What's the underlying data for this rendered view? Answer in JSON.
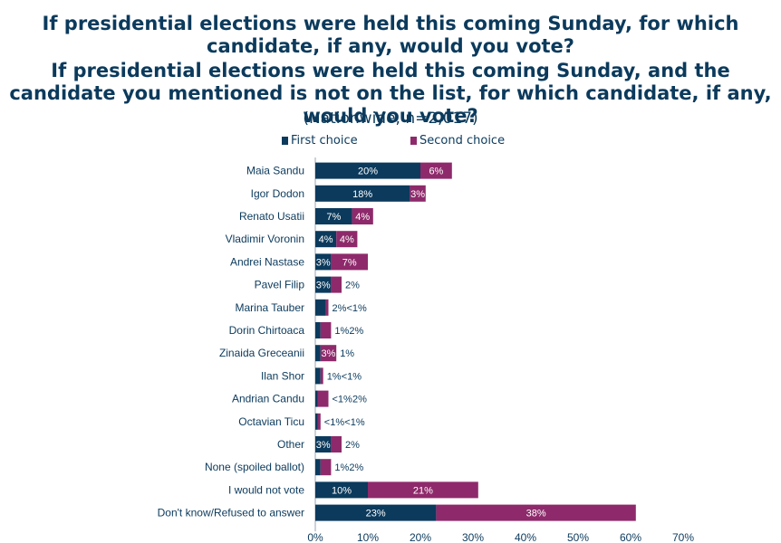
{
  "title_line1": "If presidential elections were held this coming Sunday, for which candidate, if any, would you vote?",
  "title_line2": "If presidential elections were held this coming Sunday, and the candidate you mentioned is not on the list, for which candidate, if any, would you vote?",
  "subtitle": "(Nationwide, n=2,017)",
  "colors": {
    "first": "#0b3a5c",
    "second": "#8e2a6b",
    "text": "#0b3a5c"
  },
  "chart_data": {
    "type": "bar",
    "orientation": "horizontal",
    "stacked": true,
    "title": "",
    "xlabel": "",
    "ylabel": "",
    "xlim": [
      0,
      70
    ],
    "x_ticks": [
      "0%",
      "10%",
      "20%",
      "30%",
      "40%",
      "50%",
      "60%",
      "70%"
    ],
    "legend_position": "top",
    "categories": [
      "Maia Sandu",
      "Igor Dodon",
      "Renato Usatii",
      "Vladimir Voronin",
      "Andrei Nastase",
      "Pavel Filip",
      "Marina Tauber",
      "Dorin Chirtoaca",
      "Zinaida Greceanii",
      "Ilan Shor",
      "Andrian Candu",
      "Octavian Ticu",
      "Other",
      "None (spoiled ballot)",
      "I would not vote",
      "Don't know/Refused to answer"
    ],
    "series": [
      {
        "name": "First choice",
        "values": [
          20,
          18,
          7,
          4,
          3,
          3,
          2,
          1,
          1,
          1,
          0.5,
          0.5,
          3,
          1,
          10,
          23
        ],
        "labels": [
          "20%",
          "18%",
          "7%",
          "4%",
          "3%",
          "3%",
          "2%",
          "1%",
          "1%",
          "1%",
          "<1%",
          "<1%",
          "3%",
          "1%",
          "10%",
          "23%"
        ]
      },
      {
        "name": "Second choice",
        "values": [
          6,
          3,
          4,
          4,
          7,
          2,
          0.5,
          2,
          3,
          0.5,
          2,
          0.5,
          2,
          2,
          21,
          38
        ],
        "labels": [
          "6%",
          "3%",
          "4%",
          "4%",
          "7%",
          "2%",
          "<1%",
          "2%",
          "3%",
          "<1%",
          "2%",
          "<1%",
          "2%",
          "2%",
          "21%",
          "38%"
        ]
      }
    ]
  }
}
